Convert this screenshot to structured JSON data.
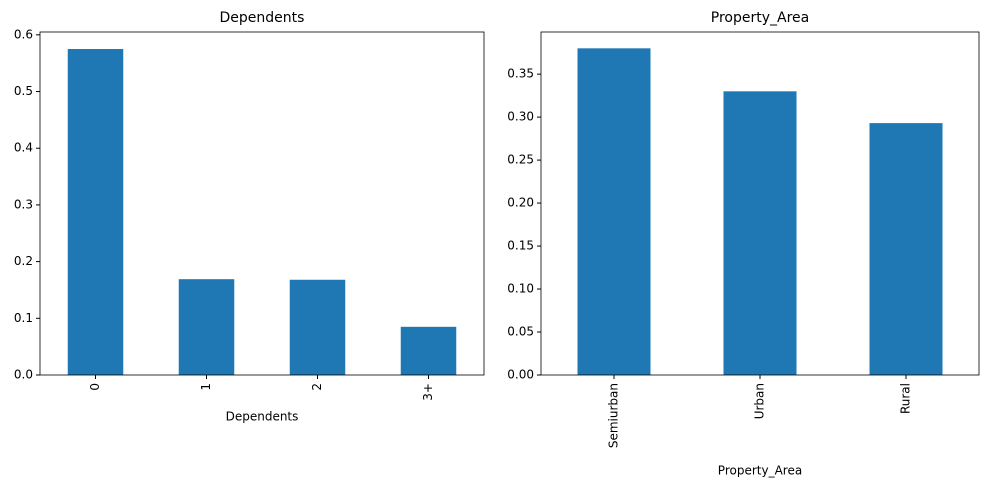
{
  "chart_data": [
    {
      "type": "bar",
      "title": "Dependents",
      "xlabel": "Dependents",
      "categories": [
        "0",
        "1",
        "2",
        "3+"
      ],
      "values": [
        0.575,
        0.169,
        0.168,
        0.085
      ],
      "color": "#1f77b4",
      "ylim": [
        0,
        0.605
      ],
      "yticks": [
        {
          "value": 0,
          "label": "0.0"
        },
        0.1,
        0.2,
        0.3,
        0.4,
        0.5,
        0.6
      ]
    },
    {
      "type": "bar",
      "title": "Property_Area",
      "xlabel": "Property_Area",
      "categories": [
        "Semiurban",
        "Urban",
        "Rural"
      ],
      "values": [
        0.38,
        0.33,
        0.293
      ],
      "color": "#1f77b4",
      "ylim": [
        0,
        0.399
      ],
      "yticks": [
        {
          "value": 0,
          "label": "0.00"
        },
        0.05,
        {
          "value": 0.1,
          "label": "0.10"
        },
        0.15,
        {
          "value": 0.2,
          "label": "0.20"
        },
        0.25,
        {
          "value": 0.3,
          "label": "0.30"
        },
        0.35
      ]
    }
  ]
}
